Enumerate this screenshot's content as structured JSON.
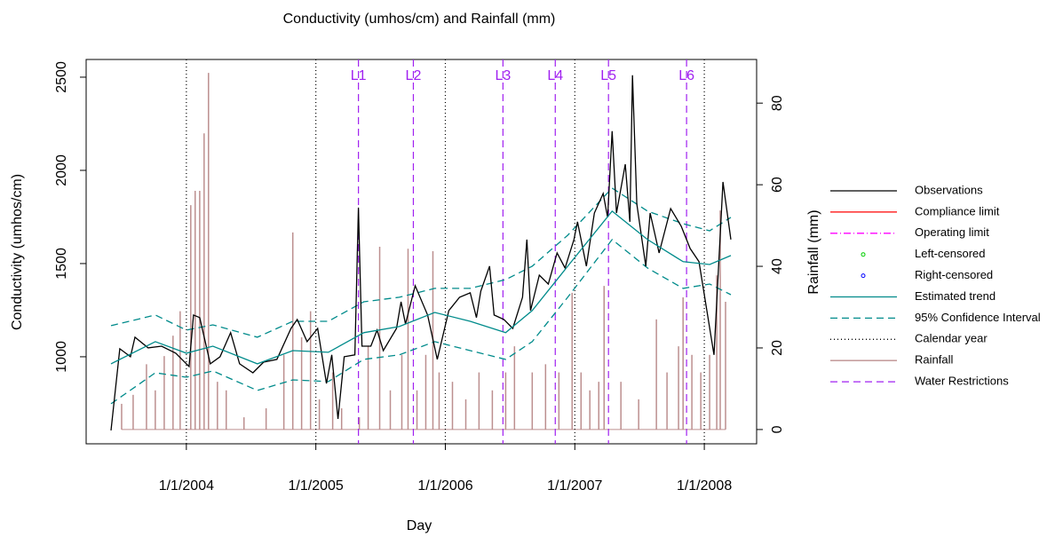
{
  "chart_data": {
    "type": "line",
    "title": "Conductivity (umhos/cm) and Rainfall (mm)",
    "xlabel": "Day",
    "ylabel": "Conductivity (umhos/cm)",
    "y2label": "Rainfall (mm)",
    "xlim": [
      2003.226,
      2008.404
    ],
    "ylim": [
      533,
      2595
    ],
    "y2lim": [
      -3.5,
      90.7
    ],
    "xticks": [
      {
        "value": 2004,
        "label": "1/1/2004"
      },
      {
        "value": 2005,
        "label": "1/1/2005"
      },
      {
        "value": 2006,
        "label": "1/1/2006"
      },
      {
        "value": 2007,
        "label": "1/1/2007"
      },
      {
        "value": 2008,
        "label": "1/1/2008"
      }
    ],
    "yticks": [
      1000,
      1500,
      2000,
      2500
    ],
    "y2ticks": [
      0,
      20,
      40,
      60,
      80
    ],
    "series": [
      {
        "name": "Observations",
        "kind": "line",
        "style": "solid",
        "color": "#000000",
        "x": [
          2003.418,
          2003.486,
          2003.568,
          2003.603,
          2003.705,
          2003.808,
          2003.918,
          2004.021,
          2004.055,
          2004.103,
          2004.185,
          2004.26,
          2004.342,
          2004.411,
          2004.514,
          2004.596,
          2004.699,
          2004.808,
          2004.856,
          2004.932,
          2005.014,
          2005.082,
          2005.123,
          2005.171,
          2005.219,
          2005.301,
          2005.329,
          2005.356,
          2005.425,
          2005.473,
          2005.521,
          2005.623,
          2005.658,
          2005.692,
          2005.767,
          2005.863,
          2005.938,
          2006.027,
          2006.11,
          2006.192,
          2006.24,
          2006.274,
          2006.342,
          2006.377,
          2006.452,
          2006.521,
          2006.596,
          2006.63,
          2006.658,
          2006.726,
          2006.795,
          2006.863,
          2006.925,
          2006.993,
          2007.021,
          2007.089,
          2007.151,
          2007.219,
          2007.253,
          2007.288,
          2007.322,
          2007.39,
          2007.425,
          2007.445,
          2007.479,
          2007.548,
          2007.582,
          2007.651,
          2007.74,
          2007.822,
          2007.89,
          2007.959,
          2008.075,
          2008.144,
          2008.205
        ],
        "values": [
          605,
          1043,
          1000,
          1105,
          1048,
          1057,
          1019,
          948,
          1224,
          1210,
          962,
          1000,
          1129,
          962,
          914,
          971,
          986,
          1152,
          1200,
          1081,
          1152,
          857,
          1010,
          667,
          1000,
          1010,
          1800,
          1057,
          1057,
          1143,
          1033,
          1152,
          1295,
          1176,
          1381,
          1224,
          986,
          1248,
          1319,
          1343,
          1210,
          1352,
          1486,
          1224,
          1200,
          1152,
          1319,
          1629,
          1248,
          1438,
          1390,
          1557,
          1476,
          1629,
          1724,
          1486,
          1771,
          1876,
          1748,
          2210,
          1771,
          2033,
          1724,
          2510,
          1819,
          1486,
          1771,
          1557,
          1795,
          1700,
          1581,
          1510,
          1010,
          1938,
          1629
        ]
      },
      {
        "name": "Compliance limit",
        "kind": "line",
        "style": "solid",
        "color": "#ff0000",
        "x": [],
        "values": []
      },
      {
        "name": "Operating limit",
        "kind": "line",
        "style": "dashdot",
        "color": "#ff00ff",
        "x": [],
        "values": []
      },
      {
        "name": "Left-censored",
        "kind": "point",
        "style": "point",
        "color": "#00cd00",
        "x": [],
        "values": []
      },
      {
        "name": "Right-censored",
        "kind": "point",
        "style": "point",
        "color": "#0000ff",
        "x": [],
        "values": []
      },
      {
        "name": "Estimated trend",
        "kind": "line",
        "style": "solid",
        "color": "#008b8b",
        "x": [
          2003.418,
          2003.76,
          2004.0,
          2004.205,
          2004.548,
          2004.822,
          2005.096,
          2005.37,
          2005.644,
          2005.918,
          2006.192,
          2006.466,
          2006.671,
          2006.945,
          2007.288,
          2007.562,
          2007.836,
          2008.041,
          2008.205
        ],
        "values": [
          962,
          1081,
          1019,
          1057,
          962,
          1033,
          1024,
          1129,
          1162,
          1238,
          1190,
          1129,
          1248,
          1486,
          1781,
          1629,
          1510,
          1495,
          1543
        ]
      },
      {
        "name": "95% Confidence Interval",
        "kind": "band",
        "style": "dashed",
        "color": "#008b8b",
        "x": [
          2003.418,
          2003.76,
          2004.0,
          2004.205,
          2004.548,
          2004.822,
          2005.096,
          2005.37,
          2005.644,
          2005.918,
          2006.192,
          2006.466,
          2006.671,
          2006.945,
          2007.288,
          2007.562,
          2007.836,
          2008.041,
          2008.205
        ],
        "values": [
          1167,
          1224,
          1143,
          1171,
          1105,
          1190,
          1190,
          1295,
          1319,
          1367,
          1367,
          1414,
          1486,
          1652,
          1905,
          1781,
          1714,
          1676,
          1748
        ],
        "lower": [
          748,
          914,
          890,
          924,
          819,
          876,
          867,
          986,
          1010,
          1081,
          1033,
          986,
          1081,
          1319,
          1629,
          1476,
          1367,
          1390,
          1333
        ]
      },
      {
        "name": "Calendar year",
        "kind": "vline",
        "style": "dotted",
        "color": "#000000",
        "x": [
          2004,
          2005,
          2006,
          2007,
          2008
        ]
      },
      {
        "name": "Rainfall",
        "kind": "spike",
        "style": "solid",
        "color": "#bc8f8f",
        "axis": "y2",
        "x": [
          2003.5,
          2003.589,
          2003.692,
          2003.76,
          2003.829,
          2003.897,
          2003.952,
          2004.034,
          2004.068,
          2004.103,
          2004.137,
          2004.171,
          2004.24,
          2004.308,
          2004.445,
          2004.616,
          2004.753,
          2004.822,
          2004.89,
          2004.959,
          2005.027,
          2005.13,
          2005.199,
          2005.336,
          2005.404,
          2005.493,
          2005.575,
          2005.664,
          2005.712,
          2005.781,
          2005.849,
          2005.904,
          2005.952,
          2006.055,
          2006.158,
          2006.26,
          2006.363,
          2006.466,
          2006.534,
          2006.671,
          2006.774,
          2006.877,
          2006.979,
          2007.048,
          2007.116,
          2007.185,
          2007.226,
          2007.356,
          2007.493,
          2007.63,
          2007.712,
          2007.801,
          2007.836,
          2007.904,
          2007.973,
          2008.041,
          2008.096,
          2008.123,
          2008.164
        ],
        "values": [
          6.3,
          8.5,
          16,
          9.6,
          18,
          23,
          29,
          55,
          58.5,
          58.5,
          72.6,
          87.4,
          11.7,
          9.6,
          3,
          5.2,
          18.3,
          48.3,
          22.6,
          29,
          7.4,
          14,
          5.2,
          3,
          20.4,
          44.8,
          9.6,
          18.3,
          44.3,
          9.6,
          18.3,
          43.7,
          14,
          11.7,
          7.4,
          14,
          9.6,
          14,
          20.4,
          14,
          16,
          14,
          33.5,
          14,
          9.6,
          11.7,
          35.2,
          11.7,
          7.4,
          27,
          14,
          20.4,
          32.4,
          18.3,
          14,
          18.3,
          37.8,
          53.7,
          31.3
        ]
      },
      {
        "name": "Water Restrictions",
        "kind": "vline",
        "style": "dashed",
        "color": "#a020f0",
        "x": [
          2005.329,
          2005.753,
          2006.445,
          2006.849,
          2007.26,
          2007.863
        ],
        "labels": [
          "L1",
          "L2",
          "L3",
          "L4",
          "L5",
          "L6"
        ]
      }
    ]
  }
}
